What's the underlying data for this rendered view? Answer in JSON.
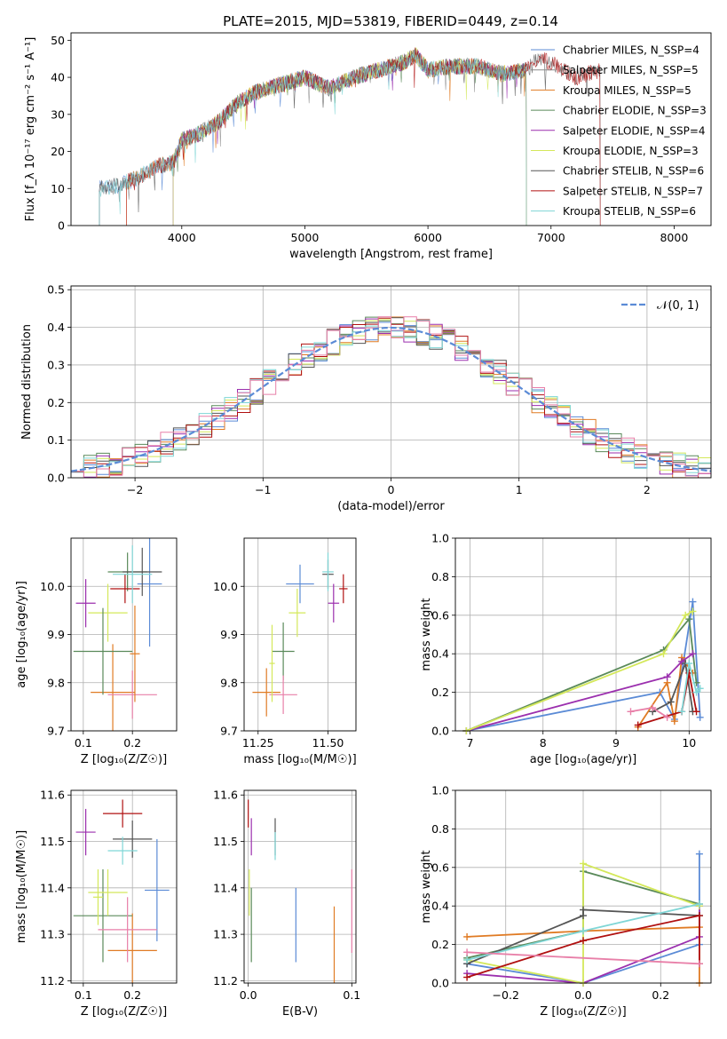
{
  "title": "PLATE=2015, MJD=53819, FIBERID=0449, z=0.14",
  "colors": [
    "#5b8bd6",
    "#8c8c8c",
    "#e07b24",
    "#5a8a5a",
    "#9b2fae",
    "#d4e85a",
    "#555555",
    "#b01010",
    "#7fd6d6",
    "#e87fa8"
  ],
  "chart_data": [
    {
      "id": "spectrum",
      "type": "line",
      "xlabel": "wavelength [Angstrom, rest frame]",
      "ylabel": "Flux [f_λ 10⁻¹⁷ erg cm⁻² s⁻¹ A⁻¹]",
      "xlim": [
        3100,
        8300
      ],
      "ylim": [
        0,
        52
      ],
      "xticks": [
        "4000",
        "5000",
        "6000",
        "7000",
        "8000"
      ],
      "yticks": [
        "0",
        "10",
        "20",
        "30",
        "40",
        "50"
      ],
      "grid": false,
      "legend_position": "top-right",
      "continuum": {
        "x": [
          3330,
          3500,
          3650,
          3800,
          3930,
          4000,
          4150,
          4300,
          4450,
          4600,
          4800,
          5000,
          5200,
          5400,
          5600,
          5800,
          5900,
          6000,
          6200,
          6400,
          6600,
          6800,
          6900,
          7000,
          7200,
          7400
        ],
        "y": [
          10,
          11,
          13,
          16,
          17,
          23,
          25,
          28,
          33,
          36,
          38,
          40,
          37,
          40,
          42,
          44,
          46,
          42,
          43,
          43,
          41,
          42,
          45,
          44,
          40,
          42
        ]
      },
      "series": [
        {
          "name": "Chabrier MILES, N_SSP=4",
          "start": 3330,
          "end": 6800,
          "color_index": 0
        },
        {
          "name": "Salpeter MILES, N_SSP=5",
          "start": 3330,
          "end": 6800,
          "color_index": 1
        },
        {
          "name": "Kroupa MILES, N_SSP=5",
          "start": 3550,
          "end": 6800,
          "color_index": 2
        },
        {
          "name": "Chabrier ELODIE, N_SSP=3",
          "start": 3930,
          "end": 6800,
          "color_index": 3
        },
        {
          "name": "Salpeter ELODIE, N_SSP=4",
          "start": 3930,
          "end": 6800,
          "color_index": 4
        },
        {
          "name": "Kroupa ELODIE, N_SSP=3",
          "start": 3930,
          "end": 6800,
          "color_index": 5
        },
        {
          "name": "Chabrier STELIB, N_SSP=6",
          "start": 3330,
          "end": 7400,
          "color_index": 6
        },
        {
          "name": "Salpeter STELIB, N_SSP=7",
          "start": 3550,
          "end": 7400,
          "color_index": 7
        },
        {
          "name": "Kroupa STELIB, N_SSP=6",
          "start": 3330,
          "end": 6800,
          "color_index": 8
        }
      ]
    },
    {
      "id": "residuals",
      "type": "bar",
      "xlabel": "(data-model)/error",
      "ylabel": "Normed distribution",
      "xlim": [
        -2.5,
        2.5
      ],
      "ylim": [
        0,
        0.51
      ],
      "xticks": [
        "−2",
        "−1",
        "0",
        "1",
        "2"
      ],
      "yticks": [
        "0.0",
        "0.1",
        "0.2",
        "0.3",
        "0.4",
        "0.5"
      ],
      "grid": true,
      "legend_position": "top-right",
      "reference": {
        "name": "𝒩(0, 1)",
        "mean": 0,
        "sigma": 1,
        "color": "#5b8bd6"
      },
      "bin_edges_start": -2.5,
      "bin_width": 0.1,
      "n_bins": 50,
      "series_colors": [
        0,
        2,
        3,
        4,
        5,
        6,
        7,
        8,
        9
      ]
    },
    {
      "id": "age-vs-z",
      "type": "scatter",
      "xlabel": "Z [log₁₀(Z/Z☉)]",
      "ylabel": "age  [log₁₀(age/yr)]",
      "xlim": [
        0.075,
        0.29
      ],
      "ylim": [
        9.7,
        10.1
      ],
      "xticks": [
        "0.1",
        "0.2"
      ],
      "xtick_values": [
        0.1,
        0.2
      ],
      "yticks": [
        "9.7",
        "9.8",
        "9.9",
        "10.0"
      ],
      "ytick_values": [
        9.7,
        9.8,
        9.9,
        10.0
      ],
      "grid": true,
      "points": [
        {
          "x": 0.235,
          "xerr": 0.025,
          "y": 10.005,
          "yerr": 0.13,
          "c": 0
        },
        {
          "x": 0.16,
          "xerr": 0.045,
          "y": 9.78,
          "yerr": 0.1,
          "c": 2
        },
        {
          "x": 0.19,
          "xerr": 0.04,
          "y": 10.03,
          "yerr": 0.04,
          "c": 3
        },
        {
          "x": 0.105,
          "xerr": 0.02,
          "y": 9.965,
          "yerr": 0.05,
          "c": 4
        },
        {
          "x": 0.15,
          "xerr": 0.04,
          "y": 9.945,
          "yerr": 0.06,
          "c": 5
        },
        {
          "x": 0.22,
          "xerr": 0.04,
          "y": 10.03,
          "yerr": 0.05,
          "c": 6
        },
        {
          "x": 0.185,
          "xerr": 0.03,
          "y": 9.995,
          "yerr": 0.03,
          "c": 7
        },
        {
          "x": 0.2,
          "xerr": 0.04,
          "y": 10.025,
          "yerr": 0.06,
          "c": 8
        },
        {
          "x": 0.2,
          "xerr": 0.05,
          "y": 9.775,
          "yerr": 0.05,
          "c": 9
        },
        {
          "x": 0.14,
          "xerr": 0.06,
          "y": 9.865,
          "yerr": 0.09,
          "c": 3
        },
        {
          "x": 0.205,
          "xerr": 0.01,
          "y": 9.86,
          "yerr": 0.1,
          "c": 2
        }
      ]
    },
    {
      "id": "age-vs-mass",
      "type": "scatter",
      "xlabel": "mass [log₁₀(M/M☉)]",
      "ylabel": "",
      "xlim": [
        11.2,
        11.6
      ],
      "ylim": [
        9.7,
        10.1
      ],
      "xticks": [
        "11.25",
        "11.50"
      ],
      "xtick_values": [
        11.25,
        11.5
      ],
      "yticks": [
        "9.7",
        "9.8",
        "9.9",
        "10.0"
      ],
      "ytick_values": [
        9.7,
        9.8,
        9.9,
        10.0
      ],
      "grid": true,
      "points": [
        {
          "x": 11.4,
          "xerr": 0.05,
          "y": 10.005,
          "yerr": 0.04,
          "c": 0
        },
        {
          "x": 11.28,
          "xerr": 0.05,
          "y": 9.78,
          "yerr": 0.05,
          "c": 2
        },
        {
          "x": 11.34,
          "xerr": 0.04,
          "y": 9.865,
          "yerr": 0.06,
          "c": 3
        },
        {
          "x": 11.52,
          "xerr": 0.02,
          "y": 9.965,
          "yerr": 0.04,
          "c": 4
        },
        {
          "x": 11.39,
          "xerr": 0.03,
          "y": 9.945,
          "yerr": 0.05,
          "c": 5
        },
        {
          "x": 11.5,
          "xerr": 0.02,
          "y": 10.025,
          "yerr": 0.03,
          "c": 6
        },
        {
          "x": 11.555,
          "xerr": 0.015,
          "y": 9.995,
          "yerr": 0.03,
          "c": 7
        },
        {
          "x": 11.5,
          "xerr": 0.02,
          "y": 10.03,
          "yerr": 0.04,
          "c": 8
        },
        {
          "x": 11.34,
          "xerr": 0.05,
          "y": 9.775,
          "yerr": 0.04,
          "c": 9
        },
        {
          "x": 11.3,
          "xerr": 0.01,
          "y": 9.84,
          "yerr": 0.08,
          "c": 5
        }
      ]
    },
    {
      "id": "weight-vs-age",
      "type": "line",
      "xlabel": "age  [log₁₀(age/yr)]",
      "ylabel": "mass weight",
      "xlim": [
        6.8,
        10.3
      ],
      "ylim": [
        0,
        1
      ],
      "xticks": [
        "7",
        "8",
        "9",
        "10"
      ],
      "xtick_values": [
        7,
        8,
        9,
        10
      ],
      "yticks": [
        "0.0",
        "0.2",
        "0.4",
        "0.6",
        "0.8",
        "1.0"
      ],
      "ytick_values": [
        0,
        0.2,
        0.4,
        0.6,
        0.8,
        1.0
      ],
      "grid": true,
      "series": [
        {
          "c": 0,
          "x": [
            6.95,
            9.6,
            9.8,
            10.05,
            10.15
          ],
          "y": [
            0,
            0.2,
            0.06,
            0.67,
            0.07
          ]
        },
        {
          "c": 2,
          "x": [
            9.3,
            9.7,
            9.8,
            9.9,
            10.05
          ],
          "y": [
            0.02,
            0.25,
            0.05,
            0.38,
            0.3
          ]
        },
        {
          "c": 3,
          "x": [
            6.95,
            9.65,
            10.0,
            10.1
          ],
          "y": [
            0,
            0.42,
            0.58,
            0.25
          ]
        },
        {
          "c": 4,
          "x": [
            6.95,
            9.7,
            9.9,
            10.05
          ],
          "y": [
            0,
            0.28,
            0.36,
            0.4
          ]
        },
        {
          "c": 5,
          "x": [
            6.95,
            9.65,
            9.95,
            10.05
          ],
          "y": [
            0,
            0.4,
            0.6,
            0.62
          ]
        },
        {
          "c": 6,
          "x": [
            9.5,
            9.75,
            9.95,
            10.05
          ],
          "y": [
            0.1,
            0.15,
            0.35,
            0.1
          ]
        },
        {
          "c": 7,
          "x": [
            9.3,
            9.9,
            10.0,
            10.1
          ],
          "y": [
            0.03,
            0.1,
            0.3,
            0.1
          ]
        },
        {
          "c": 8,
          "x": [
            9.9,
            10.0,
            10.1,
            10.15
          ],
          "y": [
            0.1,
            0.35,
            0.2,
            0.22
          ]
        },
        {
          "c": 9,
          "x": [
            9.2,
            9.5,
            9.7
          ],
          "y": [
            0.1,
            0.12,
            0.07
          ]
        }
      ]
    },
    {
      "id": "mass-vs-z",
      "type": "scatter",
      "xlabel": "Z [log₁₀(Z/Z☉)]",
      "ylabel": "mass [log₁₀(M/M☉)]",
      "xlim": [
        0.075,
        0.29
      ],
      "ylim": [
        11.195,
        11.61
      ],
      "xticks": [
        "0.1",
        "0.2"
      ],
      "xtick_values": [
        0.1,
        0.2
      ],
      "yticks": [
        "11.2",
        "11.3",
        "11.4",
        "11.5",
        "11.6"
      ],
      "ytick_values": [
        11.2,
        11.3,
        11.4,
        11.5,
        11.6
      ],
      "grid": true,
      "points": [
        {
          "x": 0.25,
          "xerr": 0.025,
          "y": 11.395,
          "yerr": 0.11,
          "c": 0
        },
        {
          "x": 0.2,
          "xerr": 0.05,
          "y": 11.265,
          "yerr": 0.08,
          "c": 2
        },
        {
          "x": 0.14,
          "xerr": 0.06,
          "y": 11.34,
          "yerr": 0.1,
          "c": 3
        },
        {
          "x": 0.105,
          "xerr": 0.02,
          "y": 11.52,
          "yerr": 0.05,
          "c": 4
        },
        {
          "x": 0.15,
          "xerr": 0.04,
          "y": 11.39,
          "yerr": 0.05,
          "c": 5
        },
        {
          "x": 0.2,
          "xerr": 0.04,
          "y": 11.505,
          "yerr": 0.04,
          "c": 6
        },
        {
          "x": 0.18,
          "xerr": 0.04,
          "y": 11.56,
          "yerr": 0.03,
          "c": 7
        },
        {
          "x": 0.18,
          "xerr": 0.03,
          "y": 11.48,
          "yerr": 0.03,
          "c": 8
        },
        {
          "x": 0.19,
          "xerr": 0.06,
          "y": 11.31,
          "yerr": 0.07,
          "c": 9
        },
        {
          "x": 0.13,
          "xerr": 0.01,
          "y": 11.38,
          "yerr": 0.06,
          "c": 5
        }
      ]
    },
    {
      "id": "mass-vs-ebv",
      "type": "scatter",
      "xlabel": "E(B-V)",
      "ylabel": "",
      "xlim": [
        -0.004,
        0.104
      ],
      "ylim": [
        11.195,
        11.61
      ],
      "xticks": [
        "0.0",
        "0.1"
      ],
      "xtick_values": [
        0,
        0.1
      ],
      "yticks": [
        "11.2",
        "11.3",
        "11.4",
        "11.5",
        "11.6"
      ],
      "ytick_values": [
        11.2,
        11.3,
        11.4,
        11.5,
        11.6
      ],
      "grid": true,
      "points": [
        {
          "x": 0.046,
          "xerr": 0,
          "y": 11.32,
          "yerr": 0.08,
          "c": 0
        },
        {
          "x": 0.083,
          "xerr": 0,
          "y": 11.27,
          "yerr": 0.09,
          "c": 2
        },
        {
          "x": 0.003,
          "xerr": 0,
          "y": 11.32,
          "yerr": 0.08,
          "c": 3
        },
        {
          "x": 0.003,
          "xerr": 0,
          "y": 11.51,
          "yerr": 0.04,
          "c": 4
        },
        {
          "x": 0.001,
          "xerr": 0,
          "y": 11.39,
          "yerr": 0.05,
          "c": 5
        },
        {
          "x": 0.026,
          "xerr": 0,
          "y": 11.51,
          "yerr": 0.04,
          "c": 6
        },
        {
          "x": 0.0,
          "xerr": 0,
          "y": 11.56,
          "yerr": 0.03,
          "c": 7
        },
        {
          "x": 0.026,
          "xerr": 0,
          "y": 11.49,
          "yerr": 0.03,
          "c": 8
        },
        {
          "x": 0.1,
          "xerr": 0,
          "y": 11.35,
          "yerr": 0.09,
          "c": 9
        }
      ]
    },
    {
      "id": "weight-vs-z",
      "type": "line",
      "xlabel": "Z [log₁₀(Z/Z☉)]",
      "ylabel": "mass weight",
      "xlim": [
        -0.33,
        0.33
      ],
      "ylim": [
        0,
        1
      ],
      "xticks": [
        "−0.2",
        "0.0",
        "0.2"
      ],
      "xtick_values": [
        -0.2,
        0,
        0.2
      ],
      "yticks": [
        "0.0",
        "0.2",
        "0.4",
        "0.6",
        "0.8",
        "1.0"
      ],
      "ytick_values": [
        0,
        0.2,
        0.4,
        0.6,
        0.8,
        1.0
      ],
      "grid": true,
      "series": [
        {
          "c": 0,
          "x": [
            -0.3,
            0.0,
            0.3,
            0.3
          ],
          "y": [
            0.1,
            0.0,
            0.2,
            0.67
          ]
        },
        {
          "c": 2,
          "x": [
            -0.3,
            0.0,
            0.3,
            0.3
          ],
          "y": [
            0.24,
            0.27,
            0.29,
            0.0
          ]
        },
        {
          "c": 3,
          "x": [
            -0.3,
            0.0,
            0.0,
            0.3
          ],
          "y": [
            0.13,
            0.27,
            0.58,
            0.41
          ]
        },
        {
          "c": 4,
          "x": [
            -0.3,
            0.0,
            0.3,
            0.3
          ],
          "y": [
            0.05,
            0.0,
            0.24,
            0.4
          ]
        },
        {
          "c": 5,
          "x": [
            -0.3,
            0.0,
            0.0,
            0.3
          ],
          "y": [
            0.12,
            0.0,
            0.62,
            0.4
          ]
        },
        {
          "c": 6,
          "x": [
            -0.3,
            0.0,
            0.0,
            0.3
          ],
          "y": [
            0.1,
            0.35,
            0.38,
            0.35
          ]
        },
        {
          "c": 7,
          "x": [
            -0.3,
            0.0,
            0.3,
            0.3
          ],
          "y": [
            0.03,
            0.22,
            0.35,
            0.1
          ]
        },
        {
          "c": 8,
          "x": [
            -0.3,
            0.0,
            0.3
          ],
          "y": [
            0.12,
            0.27,
            0.41
          ]
        },
        {
          "c": 9,
          "x": [
            -0.3,
            0.3
          ],
          "y": [
            0.16,
            0.1
          ]
        }
      ]
    }
  ]
}
